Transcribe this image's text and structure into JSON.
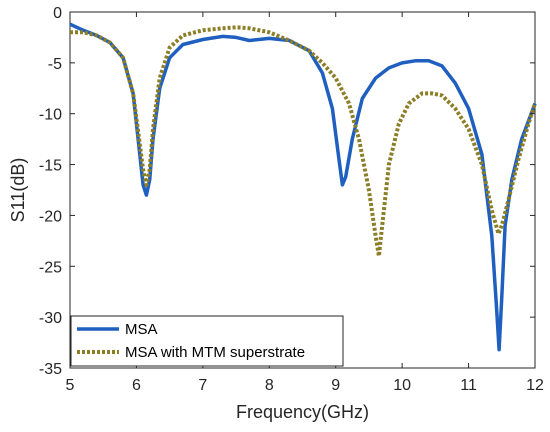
{
  "chart_data": {
    "type": "line",
    "title": "",
    "xlabel": "Frequency(GHz)",
    "ylabel": "S11(dB)",
    "xlim": [
      5,
      12
    ],
    "ylim": [
      -35,
      0
    ],
    "xticks": [
      5,
      6,
      7,
      8,
      9,
      10,
      11,
      12
    ],
    "yticks": [
      0,
      -5,
      -10,
      -15,
      -20,
      -25,
      -30,
      -35
    ],
    "xtick_labels": [
      "5",
      "6",
      "7",
      "8",
      "9",
      "10",
      "11",
      "12"
    ],
    "ytick_labels": [
      "0",
      "-5",
      "-10",
      "-15",
      "-20",
      "-25",
      "-30",
      "-35"
    ],
    "grid": false,
    "legend_position": "bottom-left",
    "series": [
      {
        "name": "MSA",
        "color": "#1f5fbf",
        "style": "solid",
        "x": [
          5.0,
          5.2,
          5.4,
          5.6,
          5.8,
          5.95,
          6.05,
          6.1,
          6.15,
          6.2,
          6.25,
          6.35,
          6.5,
          6.7,
          7.0,
          7.3,
          7.5,
          7.7,
          8.0,
          8.3,
          8.6,
          8.8,
          8.95,
          9.05,
          9.1,
          9.15,
          9.25,
          9.4,
          9.6,
          9.8,
          10.0,
          10.2,
          10.4,
          10.6,
          10.8,
          11.0,
          11.2,
          11.35,
          11.42,
          11.46,
          11.5,
          11.55,
          11.65,
          11.8,
          12.0
        ],
        "y": [
          -1.2,
          -1.8,
          -2.3,
          -3.0,
          -4.5,
          -8.0,
          -14.0,
          -17.0,
          -18.0,
          -16.5,
          -12.5,
          -7.5,
          -4.5,
          -3.2,
          -2.7,
          -2.4,
          -2.5,
          -2.8,
          -2.6,
          -2.8,
          -3.8,
          -6.0,
          -9.5,
          -14.5,
          -17.0,
          -16.2,
          -12.5,
          -8.5,
          -6.5,
          -5.5,
          -5.0,
          -4.8,
          -4.8,
          -5.3,
          -7.0,
          -9.5,
          -14.0,
          -22.0,
          -29.0,
          -33.2,
          -28.0,
          -21.0,
          -16.5,
          -12.5,
          -9.0
        ]
      },
      {
        "name": "MSA with MTM superstrate",
        "color": "#8c7e26",
        "style": "dotted",
        "x": [
          5.0,
          5.2,
          5.4,
          5.6,
          5.8,
          5.95,
          6.05,
          6.1,
          6.15,
          6.2,
          6.25,
          6.35,
          6.5,
          6.7,
          7.0,
          7.3,
          7.5,
          7.7,
          8.0,
          8.3,
          8.6,
          8.8,
          9.0,
          9.2,
          9.35,
          9.5,
          9.6,
          9.65,
          9.7,
          9.8,
          9.95,
          10.1,
          10.3,
          10.45,
          10.6,
          10.8,
          11.0,
          11.2,
          11.35,
          11.45,
          11.5,
          11.6,
          11.75,
          11.9,
          12.0
        ],
        "y": [
          -2.0,
          -2.0,
          -2.3,
          -3.0,
          -4.5,
          -8.0,
          -13.0,
          -15.5,
          -17.0,
          -15.5,
          -11.5,
          -6.5,
          -3.5,
          -2.3,
          -1.8,
          -1.6,
          -1.5,
          -1.6,
          -2.0,
          -2.8,
          -3.8,
          -5.0,
          -6.5,
          -9.0,
          -12.5,
          -17.5,
          -22.0,
          -24.0,
          -21.0,
          -15.0,
          -11.0,
          -9.0,
          -8.0,
          -8.0,
          -8.2,
          -9.5,
          -11.5,
          -15.0,
          -19.5,
          -21.8,
          -21.0,
          -18.5,
          -14.5,
          -11.0,
          -9.0
        ]
      }
    ]
  }
}
